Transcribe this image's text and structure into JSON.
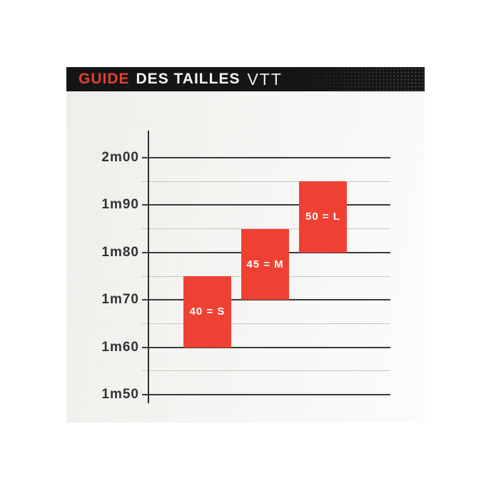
{
  "header": {
    "title_part1": "GUIDE",
    "title_part2": "DES TAILLES",
    "title_part3": "VTT",
    "background": "#151515",
    "accent_color": "#E2402D"
  },
  "chart_data": {
    "type": "bar",
    "title": "GUIDE DES TAILLES VTT",
    "unit": "m",
    "ylim": [
      1.48,
      2.06
    ],
    "grid": "major lines at labeled ticks, minor lines every 0.05 m",
    "y_ticks": [
      {
        "label": "2m00",
        "value": 2.0
      },
      {
        "label": "1m90",
        "value": 1.9
      },
      {
        "label": "1m80",
        "value": 1.8
      },
      {
        "label": "1m70",
        "value": 1.7
      },
      {
        "label": "1m60",
        "value": 1.6
      },
      {
        "label": "1m50",
        "value": 1.5
      }
    ],
    "bars": [
      {
        "label": "40 = S",
        "frame_size": "40",
        "size": "S",
        "from": 1.6,
        "to": 1.75
      },
      {
        "label": "45 = M",
        "frame_size": "45",
        "size": "M",
        "from": 1.7,
        "to": 1.85
      },
      {
        "label": "50 = L",
        "frame_size": "50",
        "size": "L",
        "from": 1.8,
        "to": 1.95
      }
    ],
    "bar_color": "#EF4133",
    "grid_major_color": "#3A3A3A",
    "grid_minor_color": "#C7C7C4",
    "legend": "none"
  }
}
